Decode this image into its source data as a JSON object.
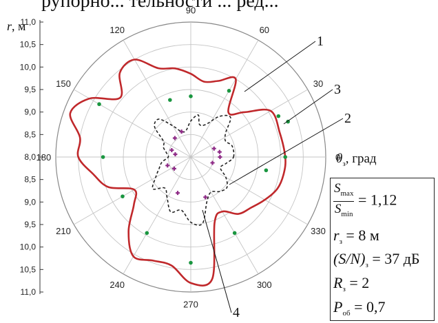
{
  "top_caption": "рупорно... тельности ... ред...",
  "chart_data": {
    "type": "polar",
    "title": "",
    "r_axis": {
      "label_symbol": "r",
      "label_unit": ", м",
      "ticks_upper": [
        "11,0",
        "10,5",
        "10,0",
        "9,5",
        "9,0",
        "8,5",
        "8,0"
      ],
      "ticks_lower": [
        "8,5",
        "9,0",
        "9,5",
        "10,0",
        "10,5",
        "11,0"
      ],
      "scale": "|r - 8| (m)",
      "r_max": 3.0,
      "grid_rings": 6
    },
    "theta_axis": {
      "label_symbol": "θ",
      "label_sub": "з",
      "label_unit": ",  град",
      "ticks": [
        "0",
        "30",
        "60",
        "90",
        "120",
        "150",
        "180",
        "210",
        "240",
        "270",
        "300",
        "330"
      ]
    },
    "series": [
      {
        "name": "1",
        "style": "solid",
        "color": "#c0282b",
        "points": [
          [
            0,
            2.1
          ],
          [
            15,
            2.05
          ],
          [
            30,
            2.05
          ],
          [
            40,
            1.55
          ],
          [
            50,
            1.3
          ],
          [
            60,
            2.0
          ],
          [
            70,
            1.8
          ],
          [
            80,
            1.7
          ],
          [
            90,
            1.85
          ],
          [
            100,
            2.0
          ],
          [
            110,
            2.1
          ],
          [
            120,
            2.5
          ],
          [
            130,
            2.45
          ],
          [
            140,
            2.05
          ],
          [
            150,
            2.6
          ],
          [
            160,
            2.85
          ],
          [
            170,
            2.5
          ],
          [
            180,
            2.5
          ],
          [
            190,
            2.2
          ],
          [
            200,
            1.95
          ],
          [
            210,
            1.45
          ],
          [
            220,
            1.65
          ],
          [
            230,
            2.15
          ],
          [
            240,
            2.55
          ],
          [
            250,
            2.45
          ],
          [
            260,
            2.45
          ],
          [
            270,
            2.8
          ],
          [
            280,
            2.75
          ],
          [
            290,
            1.55
          ],
          [
            300,
            1.4
          ],
          [
            310,
            1.65
          ],
          [
            320,
            1.75
          ],
          [
            330,
            1.9
          ],
          [
            340,
            2.05
          ],
          [
            350,
            2.1
          ]
        ]
      },
      {
        "name": "2",
        "style": "dashed",
        "color": "#222222",
        "points": [
          [
            0,
            0.95
          ],
          [
            15,
            0.95
          ],
          [
            25,
            0.85
          ],
          [
            35,
            0.95
          ],
          [
            45,
            1.25
          ],
          [
            55,
            1.1
          ],
          [
            65,
            0.8
          ],
          [
            75,
            0.75
          ],
          [
            80,
            0.95
          ],
          [
            90,
            0.8
          ],
          [
            100,
            0.6
          ],
          [
            110,
            0.6
          ],
          [
            120,
            0.8
          ],
          [
            130,
            1.1
          ],
          [
            140,
            1.05
          ],
          [
            150,
            0.7
          ],
          [
            160,
            0.65
          ],
          [
            170,
            0.55
          ],
          [
            180,
            0.5
          ],
          [
            190,
            0.65
          ],
          [
            200,
            0.75
          ],
          [
            210,
            0.9
          ],
          [
            220,
            1.1
          ],
          [
            230,
            0.9
          ],
          [
            240,
            1.05
          ],
          [
            250,
            1.3
          ],
          [
            260,
            1.2
          ],
          [
            270,
            1.45
          ],
          [
            280,
            1.5
          ],
          [
            290,
            1.05
          ],
          [
            300,
            0.9
          ],
          [
            310,
            1.0
          ],
          [
            320,
            1.05
          ],
          [
            330,
            0.9
          ],
          [
            340,
            0.7
          ],
          [
            350,
            0.8
          ]
        ]
      },
      {
        "name": "3",
        "style": "points",
        "color": "#1a9640",
        "points": [
          [
            0,
            2.1
          ],
          [
            20,
            2.3
          ],
          [
            25,
            2.15
          ],
          [
            60,
            1.7
          ],
          [
            90,
            1.35
          ],
          [
            110,
            1.35
          ],
          [
            150,
            2.35
          ],
          [
            180,
            1.95
          ],
          [
            210,
            1.75
          ],
          [
            240,
            1.95
          ],
          [
            270,
            2.35
          ],
          [
            300,
            1.95
          ],
          [
            350,
            1.7
          ]
        ]
      },
      {
        "name": "4",
        "style": "points",
        "color": "#8e2a86",
        "points": [
          [
            0,
            0.65
          ],
          [
            10,
            0.65
          ],
          [
            20,
            0.55
          ],
          [
            110,
            0.6
          ],
          [
            130,
            0.55
          ],
          [
            160,
            0.45
          ],
          [
            170,
            0.35
          ],
          [
            200,
            0.55
          ],
          [
            215,
            0.45
          ],
          [
            250,
            0.85
          ],
          [
            290,
            0.95
          ],
          [
            345,
            0.5
          ]
        ]
      }
    ],
    "callouts": [
      "1",
      "2",
      "3",
      "4"
    ],
    "legend": "none",
    "grid": true
  },
  "params": {
    "ratio_num_var": "S",
    "ratio_num_sub": "max",
    "ratio_den_var": "S",
    "ratio_den_sub": "min",
    "ratio_value": " = 1,12",
    "r_var": "r",
    "r_sub": "з",
    "r_value": " = 8 м",
    "snr_var": "(S/N)",
    "snr_sub": "з",
    "snr_value": " = 37 дБ",
    "R_var": "R",
    "R_sub": "з",
    "R_value": " = 2",
    "P_var": "P",
    "P_sub": "об",
    "P_value": " = 0,7"
  }
}
